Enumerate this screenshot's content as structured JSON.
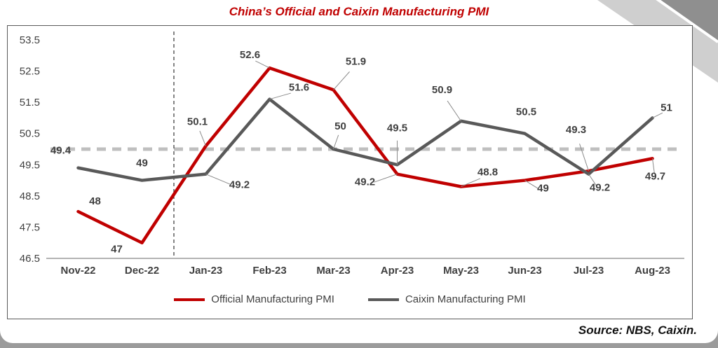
{
  "title": "China’s Official and Caixin Manufacturing PMI",
  "source": "Source: NBS, Caixin.",
  "colors": {
    "title": "#C00000",
    "official": "#C00000",
    "caixin": "#595959",
    "threshold": "#BFBFBF",
    "label": "#404040",
    "axis": "#9a9a9a",
    "separator": "#333333",
    "leader": "#8c8c8c"
  },
  "legend": [
    {
      "label": "Official Manufacturing PMI",
      "color": "#C00000"
    },
    {
      "label": "Caixin Manufacturing PMI",
      "color": "#595959"
    }
  ],
  "chart_data": {
    "type": "line",
    "title": "China’s Official and Caixin Manufacturing PMI",
    "categories": [
      "Nov-22",
      "Dec-22",
      "Jan-23",
      "Feb-23",
      "Mar-23",
      "Apr-23",
      "May-23",
      "Jun-23",
      "Jul-23",
      "Aug-23"
    ],
    "series": [
      {
        "name": "Official Manufacturing PMI",
        "color": "#C00000",
        "values": [
          48,
          47,
          50.1,
          52.6,
          51.9,
          49.2,
          48.8,
          49,
          49.3,
          49.7
        ],
        "labels": [
          "48",
          "47",
          "50.1",
          "52.6",
          "51.9",
          "49.2",
          "48.8",
          "49",
          "49.3",
          "49.7"
        ],
        "label_offsets": [
          [
            24,
            -10
          ],
          [
            -36,
            14
          ],
          [
            -12,
            -30
          ],
          [
            -28,
            -14
          ],
          [
            32,
            -36
          ],
          [
            -46,
            16
          ],
          [
            38,
            -16
          ],
          [
            26,
            16
          ],
          [
            -18,
            -54
          ],
          [
            4,
            30
          ]
        ],
        "leaders": [
          false,
          false,
          true,
          true,
          true,
          true,
          true,
          true,
          true,
          true
        ]
      },
      {
        "name": "Caixin Manufacturing PMI",
        "color": "#595959",
        "values": [
          49.4,
          49,
          49.2,
          51.6,
          50,
          49.5,
          50.9,
          50.5,
          49.2,
          51
        ],
        "labels": [
          "49.4",
          "49",
          "49.2",
          "51.6",
          "50",
          "49.5",
          "50.9",
          "50.5",
          "49.2",
          "51"
        ],
        "label_offsets": [
          [
            -25,
            -20
          ],
          [
            0,
            -20
          ],
          [
            48,
            20
          ],
          [
            42,
            -12
          ],
          [
            10,
            -28
          ],
          [
            0,
            -48
          ],
          [
            -27,
            -40
          ],
          [
            2,
            -26
          ],
          [
            16,
            24
          ],
          [
            20,
            -10
          ]
        ],
        "leaders": [
          false,
          false,
          true,
          true,
          true,
          true,
          true,
          false,
          true,
          true
        ]
      }
    ],
    "ylim": [
      46.5,
      53.5
    ],
    "yticks": [
      "53.5",
      "52.5",
      "51.5",
      "50.5",
      "49.5",
      "48.5",
      "47.5",
      "46.5"
    ],
    "xlabel": "",
    "ylabel": "",
    "grid": false,
    "threshold": 50,
    "separator_after_index": 1,
    "legend_position": "bottom"
  }
}
